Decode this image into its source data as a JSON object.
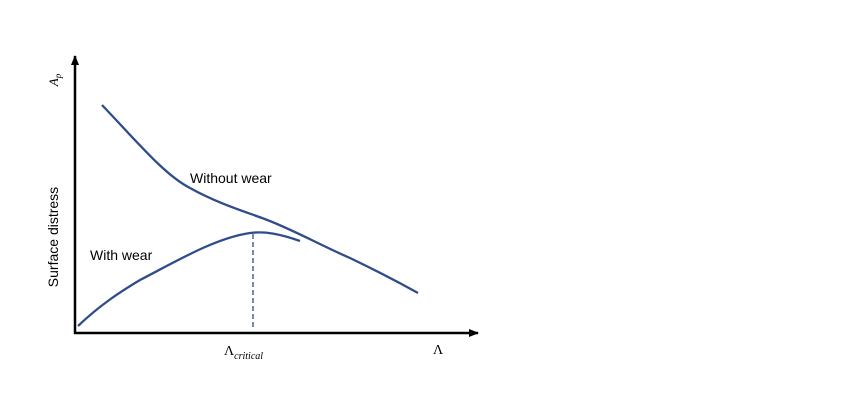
{
  "axes": {
    "y_symbol": "A",
    "y_symbol_subscript": "p",
    "y_label": "Surface distress",
    "x_symbol": "Λ"
  },
  "curves": [
    {
      "label": "Without wear"
    },
    {
      "label": "With wear"
    }
  ],
  "marker": {
    "symbol": "Λ",
    "subscript": "critical"
  }
}
